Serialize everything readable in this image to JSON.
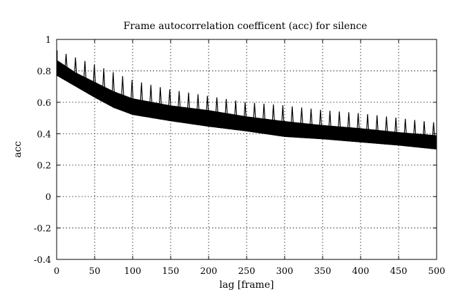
{
  "chart_data": {
    "type": "line",
    "title": "Frame autocorrelation coefficent (acc) for silence",
    "xlabel": "lag [frame]",
    "ylabel": "acc",
    "xlim": [
      0,
      500
    ],
    "ylim": [
      -0.4,
      1
    ],
    "xticks": [
      0,
      50,
      100,
      150,
      200,
      250,
      300,
      350,
      400,
      450,
      500
    ],
    "yticks": [
      1,
      0.8,
      0.6,
      0.4,
      0.2,
      0,
      -0.2,
      -0.4
    ],
    "xtick_labels": [
      "0",
      "50",
      "100",
      "150",
      "200",
      "250",
      "300",
      "350",
      "400",
      "450",
      "500"
    ],
    "ytick_labels": [
      "1",
      "0.8",
      "0.6",
      "0.4",
      "0.2",
      "0",
      "-0.2",
      "-0.4"
    ],
    "grid": true,
    "series": [
      {
        "color": "#000000",
        "envelope": {
          "x": [
            0,
            25,
            50,
            75,
            100,
            150,
            200,
            250,
            300,
            350,
            400,
            450,
            500
          ],
          "lower": [
            0.77,
            0.7,
            0.63,
            0.565,
            0.52,
            0.48,
            0.445,
            0.415,
            0.38,
            0.365,
            0.345,
            0.325,
            0.3
          ],
          "upper": [
            0.87,
            0.79,
            0.73,
            0.67,
            0.625,
            0.58,
            0.55,
            0.51,
            0.48,
            0.455,
            0.435,
            0.41,
            0.39
          ]
        },
        "peaks": {
          "period": 12.4,
          "start": 12.4,
          "x": [
            0,
            50,
            100,
            150,
            200,
            250,
            300,
            350,
            400,
            450,
            500
          ],
          "y": [
            0.93,
            0.84,
            0.74,
            0.68,
            0.64,
            0.6,
            0.58,
            0.55,
            0.53,
            0.5,
            0.47
          ]
        }
      }
    ]
  }
}
